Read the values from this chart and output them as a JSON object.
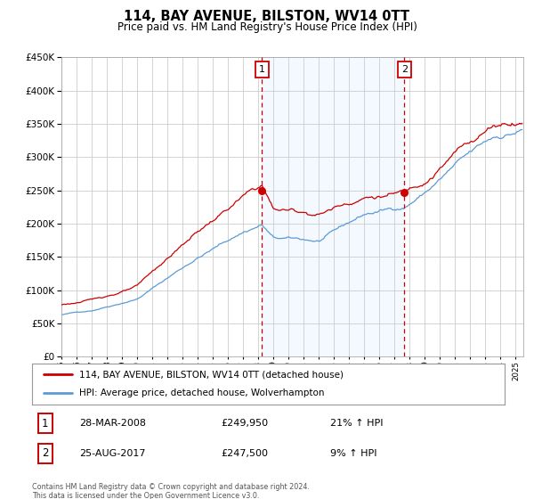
{
  "title": "114, BAY AVENUE, BILSTON, WV14 0TT",
  "subtitle": "Price paid vs. HM Land Registry's House Price Index (HPI)",
  "ylim": [
    0,
    450000
  ],
  "yticks": [
    0,
    50000,
    100000,
    150000,
    200000,
    250000,
    300000,
    350000,
    400000,
    450000
  ],
  "year_start": 1995,
  "year_end": 2025,
  "legend_entry1": "114, BAY AVENUE, BILSTON, WV14 0TT (detached house)",
  "legend_entry2": "HPI: Average price, detached house, Wolverhampton",
  "annotation1_num": "1",
  "annotation1_date": "28-MAR-2008",
  "annotation1_price": "£249,950",
  "annotation1_hpi": "21% ↑ HPI",
  "annotation1_year": 2008.24,
  "annotation1_value": 249950,
  "annotation2_num": "2",
  "annotation2_date": "25-AUG-2017",
  "annotation2_price": "£247,500",
  "annotation2_hpi": "9% ↑ HPI",
  "annotation2_year": 2017.64,
  "annotation2_value": 247500,
  "red_color": "#cc0000",
  "blue_color": "#5b9bd5",
  "shading_color": "#ddeeff",
  "bg_color": "#ffffff",
  "grid_color": "#cccccc",
  "footer": "Contains HM Land Registry data © Crown copyright and database right 2024.\nThis data is licensed under the Open Government Licence v3.0."
}
